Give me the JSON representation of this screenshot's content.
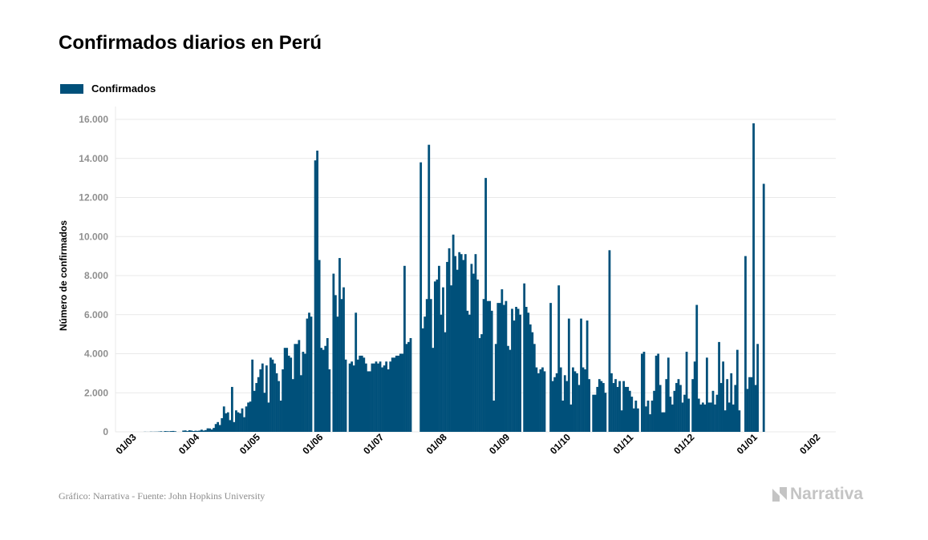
{
  "colors": {
    "bar": "#00507a",
    "grid": "#e9e9e9",
    "tick": "#8f8f8f",
    "brand": "#c4c4c4"
  },
  "legend": {
    "label": "Confirmados"
  },
  "footer": {
    "source": "Gráfico: Narrativa - Fuente: John Hopkins University",
    "brand": "Narrativa",
    "brand_icon": "narrativa-logo-icon"
  },
  "chart_data": {
    "type": "bar",
    "title": "Confirmados diarios en Perú",
    "xlabel": "",
    "ylabel": "Número de confirmados",
    "ylim": [
      0,
      16000
    ],
    "grid": true,
    "legend_position": "top-left",
    "y_ticks": [
      {
        "value": 0,
        "label": "0"
      },
      {
        "value": 2000,
        "label": "2.000"
      },
      {
        "value": 4000,
        "label": "4.000"
      },
      {
        "value": 6000,
        "label": "6.000"
      },
      {
        "value": 8000,
        "label": "8.000"
      },
      {
        "value": 10000,
        "label": "10.000"
      },
      {
        "value": 12000,
        "label": "12.000"
      },
      {
        "value": 14000,
        "label": "14.000"
      },
      {
        "value": 16000,
        "label": "16.000"
      }
    ],
    "x_ticks": [
      {
        "index": 0,
        "label": "01/03"
      },
      {
        "index": 31,
        "label": "01/04"
      },
      {
        "index": 61,
        "label": "01/05"
      },
      {
        "index": 92,
        "label": "01/06"
      },
      {
        "index": 122,
        "label": "01/07"
      },
      {
        "index": 153,
        "label": "01/08"
      },
      {
        "index": 184,
        "label": "01/09"
      },
      {
        "index": 214,
        "label": "01/10"
      },
      {
        "index": 245,
        "label": "01/11"
      },
      {
        "index": 275,
        "label": "01/12"
      },
      {
        "index": 306,
        "label": "01/01"
      },
      {
        "index": 337,
        "label": "01/02"
      }
    ],
    "x_start": "2020-03-01",
    "series": [
      {
        "name": "Confirmados",
        "values": [
          0,
          0,
          0,
          0,
          0,
          0,
          6,
          3,
          2,
          11,
          6,
          9,
          10,
          16,
          28,
          8,
          39,
          31,
          26,
          39,
          45,
          29,
          0,
          0,
          0,
          64,
          73,
          38,
          81,
          66,
          40,
          58,
          49,
          65,
          110,
          65,
          90,
          180,
          175,
          120,
          200,
          400,
          500,
          350,
          700,
          1300,
          950,
          1000,
          600,
          2300,
          500,
          1100,
          1000,
          950,
          1200,
          750,
          1300,
          1500,
          1550,
          3700,
          2100,
          2500,
          2800,
          3200,
          3500,
          2000,
          3400,
          1500,
          3800,
          3700,
          3500,
          3000,
          2600,
          1600,
          3200,
          4300,
          4300,
          3900,
          3800,
          2700,
          4500,
          4500,
          4700,
          2900,
          4100,
          4000,
          5800,
          6100,
          5900,
          0,
          13900,
          14400,
          8800,
          4300,
          4200,
          4400,
          4800,
          3200,
          0,
          8100,
          7000,
          5900,
          8900,
          6800,
          7400,
          3700,
          0,
          3500,
          3600,
          3400,
          6100,
          3700,
          3900,
          3900,
          3800,
          3500,
          3100,
          3100,
          3500,
          3500,
          3600,
          3500,
          3600,
          3300,
          3400,
          3600,
          3200,
          3600,
          3800,
          3800,
          3900,
          3900,
          4000,
          4000,
          8500,
          4500,
          4600,
          4800,
          0,
          0,
          0,
          0,
          13800,
          5300,
          5900,
          6800,
          14700,
          6800,
          4300,
          7700,
          7800,
          8500,
          6000,
          7400,
          5100,
          8700,
          9400,
          7500,
          10100,
          9000,
          8300,
          9200,
          9100,
          8800,
          9100,
          6200,
          6000,
          8600,
          8100,
          9100,
          7800,
          4800,
          5000,
          6800,
          13000,
          6700,
          6700,
          6200,
          1600,
          4500,
          6600,
          6600,
          7300,
          6500,
          6700,
          4400,
          4200,
          6300,
          5700,
          6400,
          6300,
          6000,
          0,
          7600,
          6400,
          6100,
          5500,
          5100,
          4500,
          3300,
          3000,
          3200,
          3300,
          3100,
          0,
          0,
          6600,
          2600,
          2800,
          3000,
          7500,
          3300,
          1600,
          2900,
          2600,
          5800,
          1400,
          3300,
          3100,
          3000,
          2400,
          5800,
          3300,
          3200,
          5700,
          2700,
          0,
          1900,
          1900,
          2300,
          2700,
          2600,
          2500,
          2000,
          0,
          9300,
          3000,
          2500,
          2700,
          2300,
          2600,
          1100,
          2600,
          2300,
          2300,
          2100,
          1800,
          1200,
          1600,
          1200,
          0,
          4000,
          4100,
          1300,
          1600,
          900,
          1600,
          2100,
          3900,
          4000,
          2400,
          1000,
          1000,
          2700,
          3800,
          1800,
          1400,
          2100,
          2500,
          2700,
          2400,
          1500,
          1900,
          4100,
          1700,
          0,
          2700,
          3600,
          6500,
          1700,
          1400,
          1500,
          1400,
          3800,
          1500,
          1500,
          2100,
          1400,
          1900,
          4600,
          2500,
          3600,
          1100,
          2700,
          1500,
          3000,
          1400,
          2400,
          4200,
          1100,
          0,
          0,
          9000,
          2200,
          2800,
          2800,
          15800,
          2400,
          4500,
          0,
          0,
          12700
        ]
      }
    ]
  }
}
